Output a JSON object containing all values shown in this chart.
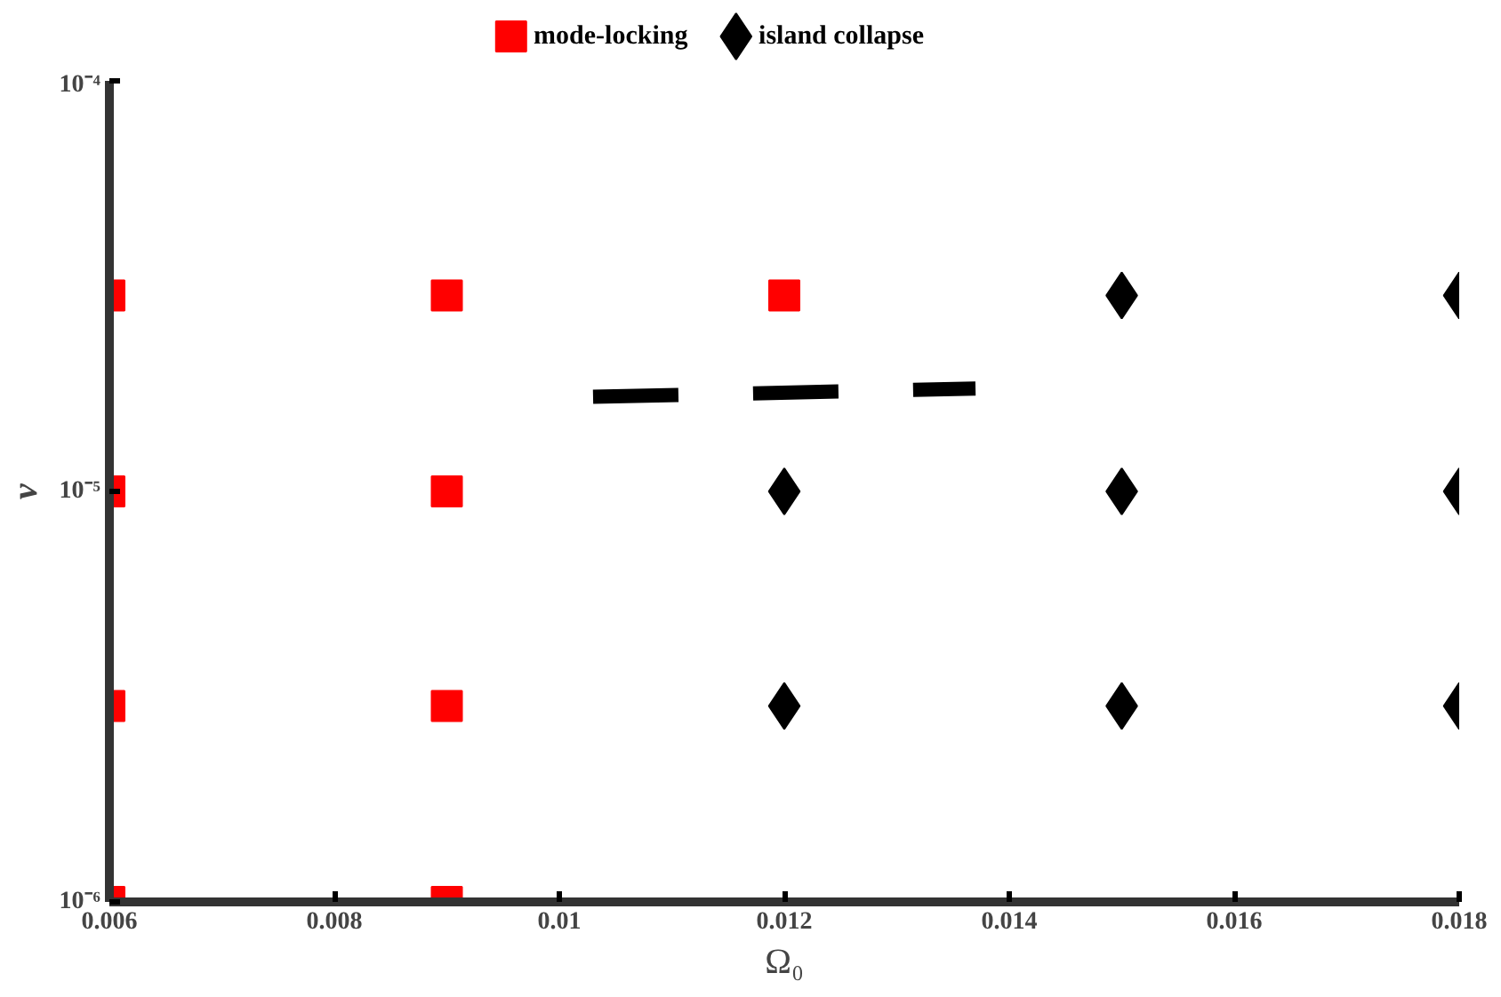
{
  "chart_data": {
    "type": "scatter",
    "xlabel": "Ω₀",
    "ylabel": "ν",
    "log": "y",
    "grid": false,
    "legend": "top",
    "xlim": [
      0.006,
      0.018
    ],
    "xticks": [
      0.006,
      0.008,
      0.01,
      0.012,
      0.014,
      0.016,
      0.018
    ],
    "ylim": [
      1e-06,
      0.0001
    ],
    "yticks": [
      {
        "value": 1e-06,
        "label": "10⁻⁶"
      },
      {
        "value": 1e-05,
        "label": "10⁻⁵"
      },
      {
        "value": 0.0001,
        "label": "10⁻⁴"
      }
    ],
    "series": [
      {
        "name": "mode-locking",
        "color": "#ff0000",
        "marker": "square",
        "x": [
          0.006,
          0.006,
          0.006,
          0.006,
          0.009,
          0.009,
          0.009,
          0.009,
          0.012
        ],
        "values": [
          3e-05,
          1e-05,
          3e-06,
          1e-06,
          3e-05,
          1e-05,
          3e-06,
          1e-06,
          3e-05
        ]
      },
      {
        "name": "island collapse",
        "color": "#000000",
        "marker": "diamond",
        "x": [
          0.012,
          0.012,
          0.015,
          0.015,
          0.015,
          0.018,
          0.018,
          0.018
        ],
        "values": [
          1e-05,
          3e-06,
          3e-05,
          1e-05,
          3e-06,
          3e-05,
          1e-05,
          3e-06
        ]
      },
      {
        "type": "line",
        "color": "#000000",
        "line_style": "dashed",
        "marker": "none",
        "x": [
          0.0103,
          0.0137
        ],
        "values": [
          1.7e-05,
          1.78e-05
        ]
      }
    ]
  }
}
